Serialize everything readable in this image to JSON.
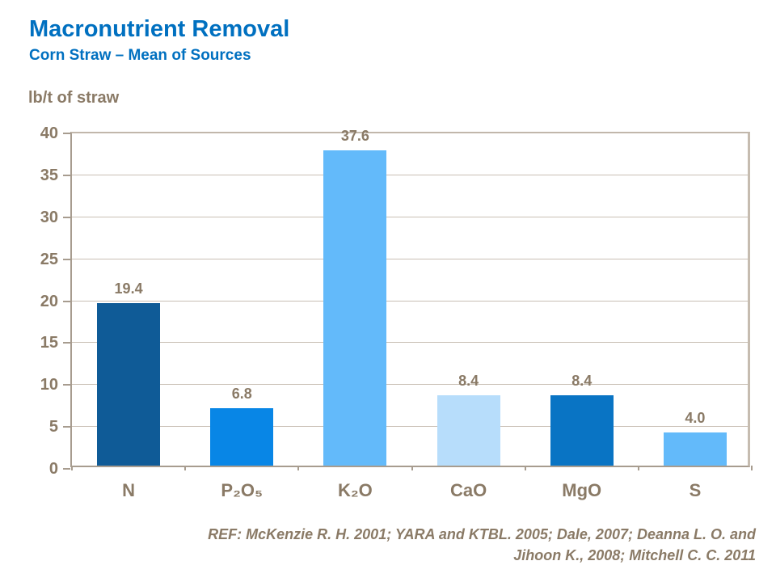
{
  "header": {
    "title": "Macronutrient Removal",
    "subtitle": "Corn Straw – Mean of Sources"
  },
  "colors": {
    "title_blue": "#0070C0",
    "text_brown": "#8A7A66",
    "axis_line": "#A79C8F",
    "gridline": "#C9BFB4"
  },
  "chart_data": {
    "type": "bar",
    "title": "Macronutrient Removal",
    "subtitle": "Corn Straw – Mean of Sources",
    "xlabel": "",
    "ylabel": "lb/t of straw",
    "categories": [
      "N",
      "P₂O₅",
      "K₂O",
      "CaO",
      "MgO",
      "S"
    ],
    "categories_plain": [
      "N",
      "P2O5",
      "K2O",
      "CaO",
      "MgO",
      "S"
    ],
    "values": [
      19.4,
      6.8,
      37.6,
      8.4,
      8.4,
      4.0
    ],
    "value_labels": [
      "19.4",
      "6.8",
      "37.6",
      "8.4",
      "8.4",
      "4.0"
    ],
    "bar_colors": [
      "#0F5B97",
      "#0886E6",
      "#63BAFA",
      "#B7DDFB",
      "#0974C4",
      "#63BAFA"
    ],
    "ylim": [
      0,
      40
    ],
    "yticks": [
      0,
      5,
      10,
      15,
      20,
      25,
      30,
      35,
      40
    ],
    "grid": true,
    "legend_position": "none"
  },
  "footer": {
    "ref_line1": "REF: McKenzie R. H. 2001; YARA and KTBL. 2005; Dale, 2007; Deanna L. O. and",
    "ref_line2": "Jihoon K.,  2008; Mitchell C. C. 2011"
  }
}
